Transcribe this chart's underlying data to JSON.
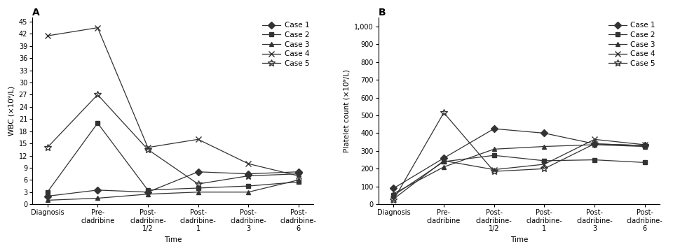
{
  "panel_A": {
    "title": "A",
    "ylabel": "WBC (×10⁹/L)",
    "xlabel": "Time",
    "yticks": [
      0,
      3,
      6,
      9,
      12,
      15,
      18,
      21,
      24,
      27,
      30,
      33,
      36,
      39,
      42,
      45
    ],
    "ylim": [
      0,
      46
    ],
    "xtick_labels": [
      "Diagnosis",
      "Pre-\ncladribine",
      "Post-\ncladribine-\n1/2",
      "Post-\ncladribine-\n1",
      "Post-\ncladribine-\n3",
      "Post-\ncladribine-\n6"
    ],
    "cases": {
      "Case 1": {
        "marker": "D",
        "values": [
          2.0,
          3.5,
          3.0,
          8.0,
          7.5,
          8.0
        ]
      },
      "Case 2": {
        "marker": "s",
        "values": [
          3.0,
          20.0,
          3.5,
          4.0,
          4.5,
          5.5
        ]
      },
      "Case 3": {
        "marker": "^",
        "values": [
          1.0,
          1.5,
          2.5,
          3.0,
          3.0,
          6.0
        ]
      },
      "Case 4": {
        "marker": "x",
        "values": [
          41.5,
          43.5,
          14.0,
          16.0,
          10.0,
          7.0
        ]
      },
      "Case 5": {
        "marker": "*",
        "values": [
          14.0,
          27.0,
          13.5,
          5.0,
          7.0,
          7.5
        ]
      }
    }
  },
  "panel_B": {
    "title": "B",
    "ylabel": "Platelet count (×10⁹/L)",
    "xlabel": "Time",
    "yticks": [
      0,
      100,
      200,
      300,
      400,
      500,
      600,
      700,
      800,
      900,
      1000
    ],
    "ylim": [
      0,
      1050
    ],
    "xtick_labels": [
      "Diagnosis",
      "Pre-\ncladribine",
      "Post-\ncladribine-\n1/2",
      "Post-\ncladribine-\n1",
      "Post-\ncladribine-\n3",
      "Post-\ncladribine-\n6"
    ],
    "cases": {
      "Case 1": {
        "marker": "D",
        "values": [
          90,
          260,
          425,
          400,
          340,
          330
        ]
      },
      "Case 2": {
        "marker": "s",
        "values": [
          50,
          240,
          275,
          245,
          250,
          235
        ]
      },
      "Case 3": {
        "marker": "^",
        "values": [
          60,
          210,
          310,
          325,
          335,
          325
        ]
      },
      "Case 4": {
        "marker": "x",
        "values": [
          30,
          245,
          195,
          225,
          365,
          335
        ]
      },
      "Case 5": {
        "marker": "*",
        "values": [
          25,
          515,
          185,
          200,
          340,
          330
        ]
      }
    }
  },
  "line_color": "#333333",
  "marker_size": 5,
  "fontsize_label": 7.5,
  "fontsize_tick": 7,
  "fontsize_legend": 7.5,
  "fontsize_title": 10
}
